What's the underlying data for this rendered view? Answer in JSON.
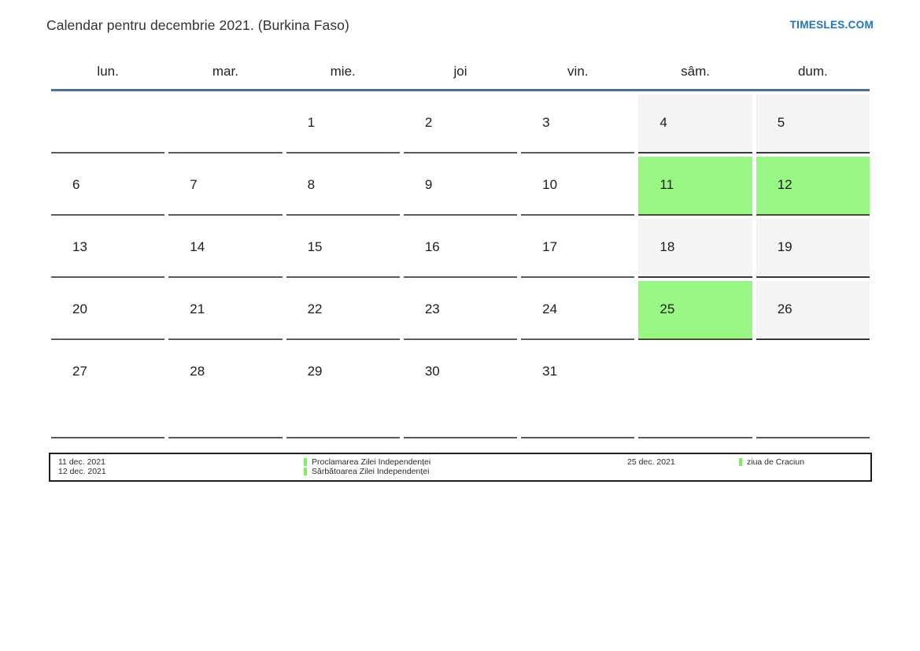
{
  "page": {
    "title": "Calendar pentru decembrie 2021. (Burkina Faso)",
    "site_link": "TIMESLES.COM"
  },
  "colors": {
    "holiday_green": "#98f784",
    "weekend_gray": "#f4f4f4",
    "header_rule_blue": "#4c7095",
    "legend_bar_green": "#7eed68",
    "link_blue": "#1f74be"
  },
  "calendar": {
    "day_headers": [
      "lun.",
      "mar.",
      "mie.",
      "joi",
      "vin.",
      "sâm.",
      "dum."
    ],
    "weeks": [
      [
        {
          "day": "",
          "kind": "empty"
        },
        {
          "day": "",
          "kind": "empty"
        },
        {
          "day": "1",
          "kind": "day"
        },
        {
          "day": "2",
          "kind": "day"
        },
        {
          "day": "3",
          "kind": "day"
        },
        {
          "day": "4",
          "kind": "weekend"
        },
        {
          "day": "5",
          "kind": "weekend"
        }
      ],
      [
        {
          "day": "6",
          "kind": "day"
        },
        {
          "day": "7",
          "kind": "day"
        },
        {
          "day": "8",
          "kind": "day"
        },
        {
          "day": "9",
          "kind": "day"
        },
        {
          "day": "10",
          "kind": "day"
        },
        {
          "day": "11",
          "kind": "holiday"
        },
        {
          "day": "12",
          "kind": "holiday"
        }
      ],
      [
        {
          "day": "13",
          "kind": "day"
        },
        {
          "day": "14",
          "kind": "day"
        },
        {
          "day": "15",
          "kind": "day"
        },
        {
          "day": "16",
          "kind": "day"
        },
        {
          "day": "17",
          "kind": "day"
        },
        {
          "day": "18",
          "kind": "weekend"
        },
        {
          "day": "19",
          "kind": "weekend"
        }
      ],
      [
        {
          "day": "20",
          "kind": "day"
        },
        {
          "day": "21",
          "kind": "day"
        },
        {
          "day": "22",
          "kind": "day"
        },
        {
          "day": "23",
          "kind": "day"
        },
        {
          "day": "24",
          "kind": "day"
        },
        {
          "day": "25",
          "kind": "holiday"
        },
        {
          "day": "26",
          "kind": "weekend"
        }
      ],
      [
        {
          "day": "27",
          "kind": "day"
        },
        {
          "day": "28",
          "kind": "day"
        },
        {
          "day": "29",
          "kind": "day"
        },
        {
          "day": "30",
          "kind": "day"
        },
        {
          "day": "31",
          "kind": "day"
        },
        {
          "day": "",
          "kind": "empty"
        },
        {
          "day": "",
          "kind": "empty"
        }
      ]
    ]
  },
  "legend": {
    "entries": [
      {
        "dates": [
          "11 dec. 2021",
          "12 dec. 2021"
        ],
        "names": [
          "Proclamarea Zilei Independenței",
          "Sărbătoarea Zilei Independenței"
        ]
      },
      {
        "dates": [
          "25 dec. 2021"
        ],
        "names": [
          "ziua de Craciun"
        ]
      }
    ]
  }
}
